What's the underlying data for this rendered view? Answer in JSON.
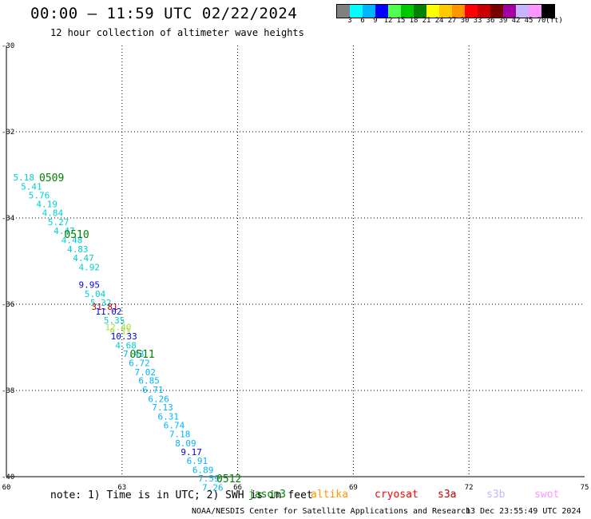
{
  "header": {
    "title": "00:00 – 11:59 UTC 02/22/2024",
    "subtitle": "12 hour collection of altimeter wave heights"
  },
  "color_legend": {
    "colors": [
      "#808080",
      "#00ffff",
      "#00b4ff",
      "#0000ff",
      "#50ff50",
      "#00c800",
      "#008200",
      "#ffff00",
      "#ffc800",
      "#ff9600",
      "#ff0000",
      "#c80000",
      "#780000",
      "#a000a0",
      "#c8b4ff",
      "#ff96ff",
      "#000000"
    ],
    "labels": [
      "3",
      "6",
      "9",
      "12",
      "15",
      "18",
      "21",
      "24",
      "27",
      "30",
      "33",
      "36",
      "39",
      "42",
      "45",
      "70",
      "(ft)"
    ]
  },
  "chart_data": {
    "type": "scatter",
    "title": "00:00 – 11:59 UTC 02/22/2024",
    "subtitle": "12 hour collection of altimeter wave heights",
    "xlabel": "",
    "ylabel": "",
    "xlim": [
      60,
      75
    ],
    "ylim": [
      -40,
      -30
    ],
    "x_ticks": [
      "60",
      "63",
      "66",
      "69",
      "72",
      "75"
    ],
    "y_ticks": [
      "-30",
      "-32",
      "-34",
      "-36",
      "-38",
      "-40"
    ],
    "grid": true,
    "series": [
      {
        "name": "jason3",
        "points": [
          {
            "x": 60.45,
            "y": -33.06,
            "label": "5.18",
            "color": "#00d0d0"
          },
          {
            "x": 60.65,
            "y": -33.27,
            "label": "5.41",
            "color": "#00d0d0"
          },
          {
            "x": 60.85,
            "y": -33.47,
            "label": "5.76",
            "color": "#00d0d0"
          },
          {
            "x": 61.05,
            "y": -33.68,
            "label": "4.19",
            "color": "#00d0d0"
          },
          {
            "x": 61.2,
            "y": -33.88,
            "label": "4.84",
            "color": "#00d0d0"
          },
          {
            "x": 61.35,
            "y": -34.09,
            "label": "5.27",
            "color": "#00d0d0"
          },
          {
            "x": 61.5,
            "y": -34.3,
            "label": "4.47",
            "color": "#00d0d0"
          },
          {
            "x": 61.7,
            "y": -34.51,
            "label": "4.48",
            "color": "#00d0d0"
          },
          {
            "x": 61.85,
            "y": -34.72,
            "label": "4.83",
            "color": "#00d0d0"
          },
          {
            "x": 62.0,
            "y": -34.93,
            "label": "4.47",
            "color": "#00d0d0"
          },
          {
            "x": 62.15,
            "y": -35.14,
            "label": "4.92",
            "color": "#00d0d0"
          },
          {
            "x": 62.15,
            "y": -35.55,
            "label": "9.95",
            "color": "#0000ff"
          },
          {
            "x": 62.3,
            "y": -35.76,
            "label": "5.04",
            "color": "#00d0d0"
          },
          {
            "x": 62.45,
            "y": -35.96,
            "label": "5.32",
            "color": "#00d0d0"
          },
          {
            "x": 62.55,
            "y": -36.06,
            "label": "31.81",
            "color": "#c80000"
          },
          {
            "x": 62.65,
            "y": -36.17,
            "label": "11.02",
            "color": "#0000ff"
          },
          {
            "x": 62.8,
            "y": -36.37,
            "label": "5.35",
            "color": "#00d0d0"
          },
          {
            "x": 62.9,
            "y": -36.53,
            "label": "12.40",
            "color": "#a8e040"
          },
          {
            "x": 62.95,
            "y": -36.63,
            "label": "9.33",
            "color": "#a8e040"
          },
          {
            "x": 63.05,
            "y": -36.74,
            "label": "10.33",
            "color": "#0000ff"
          },
          {
            "x": 63.1,
            "y": -36.95,
            "label": "4.68",
            "color": "#00d0d0"
          },
          {
            "x": 63.3,
            "y": -37.15,
            "label": "7.43",
            "color": "#00b4ff"
          },
          {
            "x": 63.45,
            "y": -37.36,
            "label": "6.72",
            "color": "#00b4ff"
          },
          {
            "x": 63.6,
            "y": -37.57,
            "label": "7.02",
            "color": "#00b4ff"
          },
          {
            "x": 63.7,
            "y": -37.77,
            "label": "6.85",
            "color": "#00b4ff"
          },
          {
            "x": 63.8,
            "y": -37.98,
            "label": "6.71",
            "color": "#00b4ff"
          },
          {
            "x": 63.95,
            "y": -38.19,
            "label": "6.26",
            "color": "#00b4ff"
          },
          {
            "x": 64.05,
            "y": -38.39,
            "label": "7.13",
            "color": "#00b4ff"
          },
          {
            "x": 64.2,
            "y": -38.6,
            "label": "6.31",
            "color": "#00b4ff"
          },
          {
            "x": 64.35,
            "y": -38.81,
            "label": "6.74",
            "color": "#00b4ff"
          },
          {
            "x": 64.5,
            "y": -39.01,
            "label": "7.18",
            "color": "#00b4ff"
          },
          {
            "x": 64.65,
            "y": -39.22,
            "label": "8.09",
            "color": "#00b4ff"
          },
          {
            "x": 64.8,
            "y": -39.43,
            "label": "9.17",
            "color": "#0000ff"
          },
          {
            "x": 64.95,
            "y": -39.63,
            "label": "6.91",
            "color": "#00b4ff"
          },
          {
            "x": 65.1,
            "y": -39.84,
            "label": "6.89",
            "color": "#00b4ff"
          },
          {
            "x": 65.25,
            "y": -40.04,
            "label": "7.59",
            "color": "#00b4ff"
          },
          {
            "x": 65.35,
            "y": -40.25,
            "label": "7.26",
            "color": "#00b4ff"
          }
        ]
      }
    ],
    "time_labels": [
      {
        "x": 60.85,
        "y": -33.06,
        "text": "0509"
      },
      {
        "x": 61.5,
        "y": -34.37,
        "text": "0510"
      },
      {
        "x": 63.2,
        "y": -37.15,
        "text": "0511"
      },
      {
        "x": 65.45,
        "y": -40.04,
        "text": "0512"
      }
    ]
  },
  "note": "note: 1) Time is in UTC; 2) SWH is in feet",
  "satellites": [
    {
      "name": "jason3",
      "color": "#008200"
    },
    {
      "name": "altika",
      "color": "#ff9600"
    },
    {
      "name": "cryosat",
      "color": "#ff0000"
    },
    {
      "name": "s3a",
      "color": "#c80000"
    },
    {
      "name": "s3b",
      "color": "#c8b4ff"
    },
    {
      "name": "swot",
      "color": "#ff96ff"
    }
  ],
  "footer": {
    "org": "NOAA/NESDIS Center for Satellite Applications and Research",
    "generated": "13 Dec 23:55:49 UTC 2024"
  }
}
